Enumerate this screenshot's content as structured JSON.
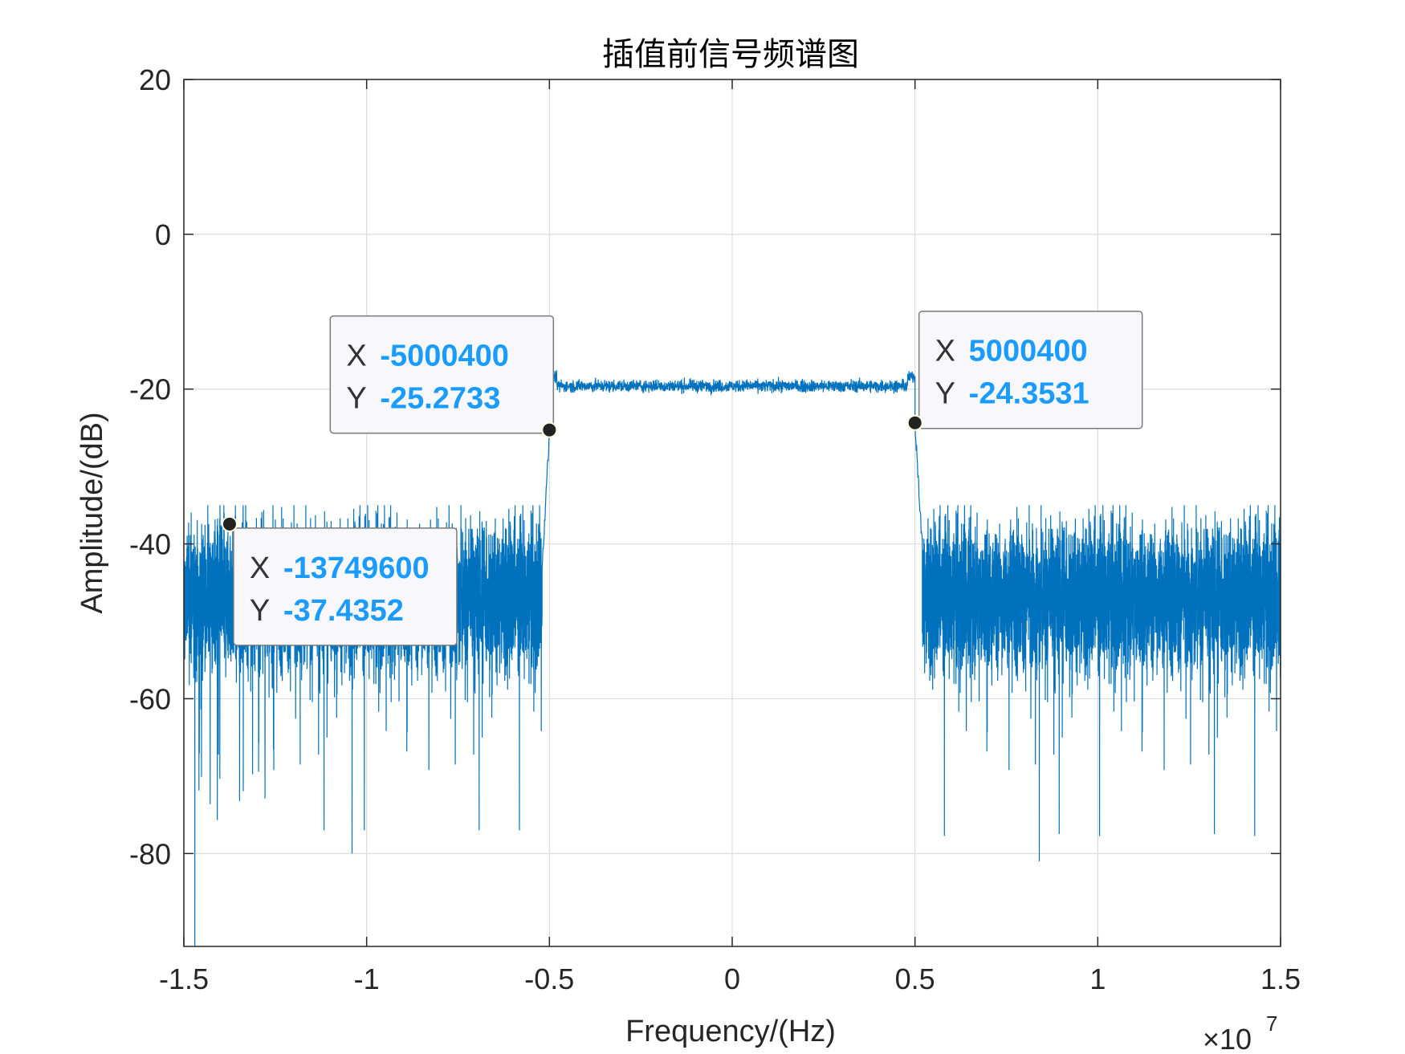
{
  "chart_data": {
    "type": "line",
    "title": "插值前信号频谱图",
    "xlabel": "Frequency/(Hz)",
    "ylabel": "Amplitude/(dB)",
    "x_exponent_label": "×10",
    "x_exponent_power": "7",
    "x_scale": 10000000,
    "xlim": [
      -15000000,
      15000000
    ],
    "ylim": [
      -92,
      20
    ],
    "xticks": [
      -15000000,
      -10000000,
      -5000000,
      0,
      5000000,
      10000000,
      15000000
    ],
    "xtick_labels": [
      "-1.5",
      "-1",
      "-0.5",
      "0",
      "0.5",
      "1",
      "1.5"
    ],
    "yticks": [
      -80,
      -60,
      -40,
      -20,
      0,
      20
    ],
    "ytick_labels": [
      "-80",
      "-60",
      "-40",
      "-20",
      "0",
      "20"
    ],
    "grid": true,
    "line_color": "#0072bd",
    "series": [
      {
        "name": "",
        "segments": [
          {
            "x_start": -15000000,
            "x_end": -5200000,
            "level": -47,
            "spread": 9,
            "peak_top": -35,
            "dip_bottom": -77
          },
          {
            "x_start": -5200000,
            "x_end": -5000400,
            "level_start": -43,
            "level_end": -25.3
          },
          {
            "x_start": -5000400,
            "x_end": 5000400,
            "level": -19.6,
            "spread": 0.8
          },
          {
            "x_start": 5000400,
            "x_end": 5200000,
            "level_start": -24.4,
            "level_end": -40
          },
          {
            "x_start": 5200000,
            "x_end": 15000000,
            "level": -47,
            "spread": 9,
            "peak_top": -35,
            "dip_bottom": -81
          }
        ],
        "notable_points": [
          {
            "x": -14700000,
            "y": -92
          },
          {
            "x": -10400000,
            "y": -80
          },
          {
            "x": 8400000,
            "y": -81
          }
        ]
      }
    ],
    "datatips": [
      {
        "x_key": "X",
        "y_key": "Y",
        "x": -13749600,
        "y": -37.4352,
        "x_text": "-13749600",
        "y_text": "-37.4352",
        "box_position": "below-right"
      },
      {
        "x_key": "X",
        "y_key": "Y",
        "x": -5000400,
        "y": -25.2733,
        "x_text": "-5000400",
        "y_text": "-25.2733",
        "box_position": "above-left"
      },
      {
        "x_key": "X",
        "y_key": "Y",
        "x": 5000400,
        "y": -24.3531,
        "x_text": "5000400",
        "y_text": "-24.3531",
        "box_position": "above-right"
      }
    ],
    "tip_value_color": "#1a9bff"
  }
}
